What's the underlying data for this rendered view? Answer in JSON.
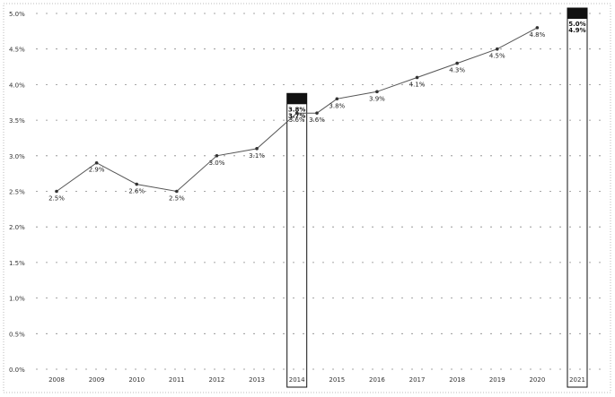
{
  "chart_data": {
    "type": "line",
    "title": "",
    "xlabel": "",
    "ylabel": "",
    "x_ticks": [
      "2008",
      "2009",
      "2010",
      "2011",
      "2012",
      "2013",
      "2014",
      "2015",
      "2016",
      "2017",
      "2018",
      "2019",
      "2020",
      "2021"
    ],
    "y_ticks": [
      "0.0%",
      "0.5%",
      "1.0%",
      "1.5%",
      "2.0%",
      "2.5%",
      "3.0%",
      "3.5%",
      "4.0%",
      "4.5%",
      "5.0%"
    ],
    "ylim": [
      0,
      5
    ],
    "grid": "horizontal dashed",
    "series": [
      {
        "points": [
          {
            "x": 2008,
            "y": 2.5,
            "label": "2.5%"
          },
          {
            "x": 2009,
            "y": 2.9,
            "label": "2.9%"
          },
          {
            "x": 2010,
            "y": 2.6,
            "label": "2.6%"
          },
          {
            "x": 2011,
            "y": 2.5,
            "label": "2.5%"
          },
          {
            "x": 2012,
            "y": 3.0,
            "label": "3.0%"
          },
          {
            "x": 2013,
            "y": 3.1,
            "label": "3.1%"
          },
          {
            "x": 2014,
            "y": 3.6,
            "label": "3.6%"
          },
          {
            "x": 2014.5,
            "y": 3.6,
            "label": "3.6%"
          },
          {
            "x": 2015,
            "y": 3.8,
            "label": "3.8%"
          },
          {
            "x": 2016,
            "y": 3.9,
            "label": "3.9%"
          },
          {
            "x": 2017,
            "y": 4.1,
            "label": "4.1%"
          },
          {
            "x": 2018,
            "y": 4.3,
            "label": "4.3%"
          },
          {
            "x": 2019,
            "y": 4.5,
            "label": "4.5%"
          },
          {
            "x": 2020,
            "y": 4.8,
            "label": "4.8%"
          }
        ]
      }
    ],
    "highlights": [
      {
        "x": 2014,
        "labels": [
          "3.8%",
          "3.7%"
        ]
      },
      {
        "x": 2021,
        "labels": [
          "5.0%",
          "4.9%"
        ]
      }
    ]
  }
}
